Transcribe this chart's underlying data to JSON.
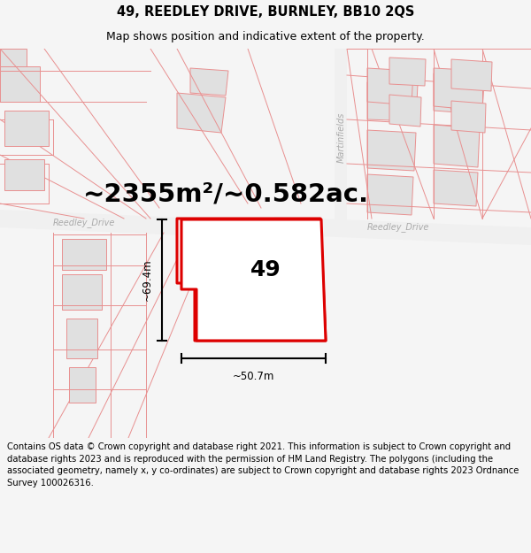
{
  "title": "49, REEDLEY DRIVE, BURNLEY, BB10 2QS",
  "subtitle": "Map shows position and indicative extent of the property.",
  "area_text": "~2355m²/~0.582ac.",
  "dim_vertical": "~69.4m",
  "dim_horizontal": "~50.7m",
  "property_number": "49",
  "street_label_left": "Reedley_Drive",
  "street_label_right": "Reedley_Drive",
  "street_label_vert": "Martinfields",
  "copyright_text": "Contains OS data © Crown copyright and database right 2021. This information is subject to Crown copyright and database rights 2023 and is reproduced with the permission of HM Land Registry. The polygons (including the associated geometry, namely x, y co-ordinates) are subject to Crown copyright and database rights 2023 Ordnance Survey 100026316.",
  "bg_color": "#f5f5f5",
  "map_bg": "#ffffff",
  "building_color": "#e0e0e0",
  "building_outline": "#e89090",
  "lot_line_color": "#e89090",
  "property_fill": "#ffffff",
  "property_outline": "#dd0000",
  "dim_line_color": "#000000",
  "text_color": "#000000",
  "street_color": "#aaaaaa",
  "title_fontsize": 10.5,
  "subtitle_fontsize": 9,
  "area_fontsize": 21,
  "dim_fontsize": 8.5,
  "number_fontsize": 18,
  "copyright_fontsize": 7.2,
  "street_fontsize": 7
}
